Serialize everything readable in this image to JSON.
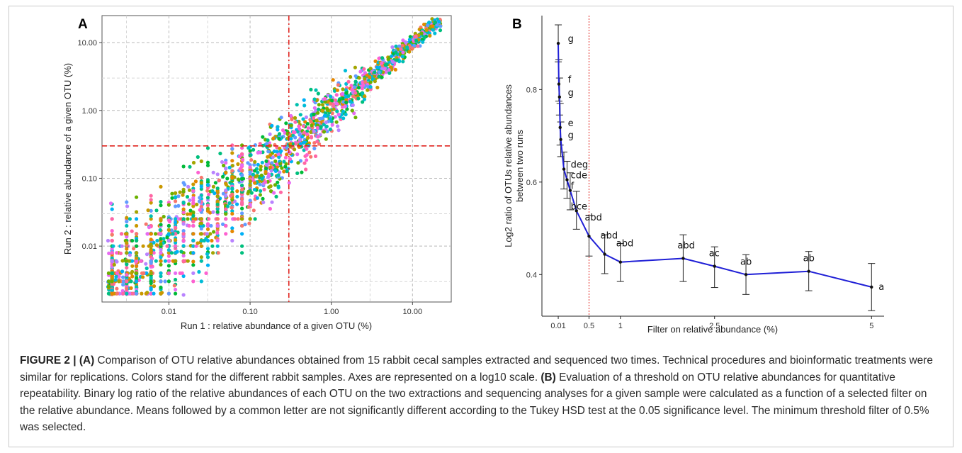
{
  "chart_data": [
    {
      "type": "scatter",
      "panel": "A",
      "title": "",
      "xlabel": "Run 1 : relative abundance of a given OTU (%)",
      "ylabel": "Run 2 : relative abundance of a given OTU (%)",
      "x_scale": "log10",
      "y_scale": "log10",
      "xlim": [
        0.0015,
        30
      ],
      "ylim": [
        0.0015,
        25
      ],
      "x_ticks": [
        "0.01",
        "0.10",
        "1.00",
        "10.00"
      ],
      "y_ticks": [
        "0.01",
        "0.10",
        "1.00",
        "10.00"
      ],
      "grid": true,
      "threshold_lines": {
        "x": 0.3,
        "y": 0.3
      },
      "num_samples": 15,
      "colors": [
        "#F8766D",
        "#E58700",
        "#C99800",
        "#A3A500",
        "#6BB100",
        "#00BA38",
        "#00BF7D",
        "#00C0AF",
        "#00BCD8",
        "#00B0F6",
        "#619CFF",
        "#B983FF",
        "#E76BF3",
        "#FD61D1",
        "#FF67A4"
      ]
    },
    {
      "type": "line",
      "panel": "B",
      "title": "",
      "xlabel": "Filter on relative abundance (%)",
      "ylabel": "Log2 ratio of OTUs relative abundances between two runs",
      "ylabel_lines": [
        "Log2 ratio of OTUs relative abundances",
        "between two runs"
      ],
      "x_ticks": [
        0.01,
        0.5,
        1,
        2.5,
        5
      ],
      "x_tick_labels": [
        "0.01",
        "0.5",
        "1",
        "2.5",
        "5"
      ],
      "y_ticks": [
        0.4,
        0.6,
        0.8
      ],
      "y_tick_labels": [
        "0.4",
        "0.6",
        "0.8"
      ],
      "xlim": [
        -0.25,
        5.2
      ],
      "ylim": [
        0.31,
        0.96
      ],
      "threshold_line_x": 0.5,
      "line_color": "#1f1fd6",
      "points": [
        {
          "x": 0.01,
          "y": 0.9,
          "lo": 0.86,
          "hi": 0.94,
          "letter": "g"
        },
        {
          "x": 0.02,
          "y": 0.812,
          "lo": 0.775,
          "hi": 0.865,
          "letter": "f"
        },
        {
          "x": 0.03,
          "y": 0.784,
          "lo": 0.745,
          "hi": 0.825,
          "letter": "g"
        },
        {
          "x": 0.04,
          "y": 0.718,
          "lo": 0.68,
          "hi": 0.77,
          "letter": "e"
        },
        {
          "x": 0.05,
          "y": 0.692,
          "lo": 0.655,
          "hi": 0.73,
          "letter": "g"
        },
        {
          "x": 0.1,
          "y": 0.628,
          "lo": 0.585,
          "hi": 0.665,
          "letter": "deg"
        },
        {
          "x": 0.15,
          "y": 0.605,
          "lo": 0.565,
          "hi": 0.645,
          "letter": "cde"
        },
        {
          "x": 0.2,
          "y": 0.582,
          "lo": 0.54,
          "hi": 0.62,
          "letter": "f"
        },
        {
          "x": 0.3,
          "y": 0.538,
          "lo": 0.498,
          "hi": 0.58,
          "letter": "bce"
        },
        {
          "x": 0.5,
          "y": 0.483,
          "lo": 0.44,
          "hi": 0.528,
          "letter": "abd"
        },
        {
          "x": 0.75,
          "y": 0.444,
          "lo": 0.402,
          "hi": 0.486,
          "letter": "abd"
        },
        {
          "x": 1.0,
          "y": 0.427,
          "lo": 0.385,
          "hi": 0.467,
          "letter": "abd"
        },
        {
          "x": 2.0,
          "y": 0.435,
          "lo": 0.385,
          "hi": 0.486,
          "letter": "abd"
        },
        {
          "x": 2.5,
          "y": 0.418,
          "lo": 0.372,
          "hi": 0.46,
          "letter": "ac"
        },
        {
          "x": 3.0,
          "y": 0.4,
          "lo": 0.357,
          "hi": 0.443,
          "letter": "ab"
        },
        {
          "x": 4.0,
          "y": 0.407,
          "lo": 0.365,
          "hi": 0.45,
          "letter": "ab"
        },
        {
          "x": 5.0,
          "y": 0.373,
          "lo": 0.322,
          "hi": 0.424,
          "letter": "a"
        }
      ]
    }
  ],
  "caption": {
    "label": "FIGURE 2 | (A)",
    "text_a": " Comparison of OTU relative abundances obtained from 15 rabbit cecal samples extracted and sequenced two times. Technical procedures and bioinformatic treatments were similar for replications. Colors stand for the different rabbit samples. Axes are represented on a log10 scale. ",
    "label_b": "(B)",
    "text_b": " Evaluation of a threshold on OTU relative abundances for quantitative repeatability. Binary log ratio of the relative abundances of each OTU on the two extractions and sequencing analyses for a given sample were calculated as a function of a selected filter on the relative abundance. Means followed by a common letter are not significantly different according to the Tukey HSD test at the 0.05 significance level. The minimum threshold filter of 0.5% was selected."
  }
}
